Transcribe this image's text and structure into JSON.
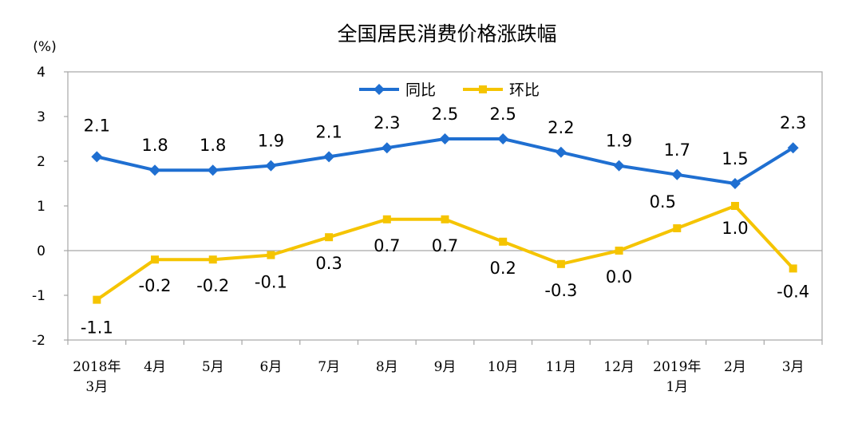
{
  "chart_data": {
    "type": "line",
    "title": "全国居民消费价格涨跌幅",
    "unit_label": "(%)",
    "ylim": [
      -2,
      4
    ],
    "yticks": [
      4,
      3,
      2,
      1,
      0,
      -1,
      -2
    ],
    "grid": false,
    "legend_position": "top-center",
    "categories": [
      [
        "2018年",
        "3月"
      ],
      [
        "4月"
      ],
      [
        "5月"
      ],
      [
        "6月"
      ],
      [
        "7月"
      ],
      [
        "8月"
      ],
      [
        "9月"
      ],
      [
        "10月"
      ],
      [
        "11月"
      ],
      [
        "12月"
      ],
      [
        "2019年",
        "1月"
      ],
      [
        "2月"
      ],
      [
        "3月"
      ]
    ],
    "series": [
      {
        "name": "同比",
        "color": "#1F6FD1",
        "marker": "diamond",
        "values": [
          2.1,
          1.8,
          1.8,
          1.9,
          2.1,
          2.3,
          2.5,
          2.5,
          2.2,
          1.9,
          1.7,
          1.5,
          2.3
        ],
        "labels": [
          "2.1",
          "1.8",
          "1.8",
          "1.9",
          "2.1",
          "2.3",
          "2.5",
          "2.5",
          "2.2",
          "1.9",
          "1.7",
          "1.5",
          "2.3"
        ]
      },
      {
        "name": "环比",
        "color": "#F5C400",
        "marker": "square",
        "values": [
          -1.1,
          -0.2,
          -0.2,
          -0.1,
          0.3,
          0.7,
          0.7,
          0.2,
          -0.3,
          0.0,
          0.5,
          1.0,
          -0.4
        ],
        "labels": [
          "-1.1",
          "-0.2",
          "-0.2",
          "-0.1",
          "0.3",
          "0.7",
          "0.7",
          "0.2",
          "-0.3",
          "0.0",
          "0.5",
          "1.0",
          "-0.4"
        ]
      }
    ]
  }
}
